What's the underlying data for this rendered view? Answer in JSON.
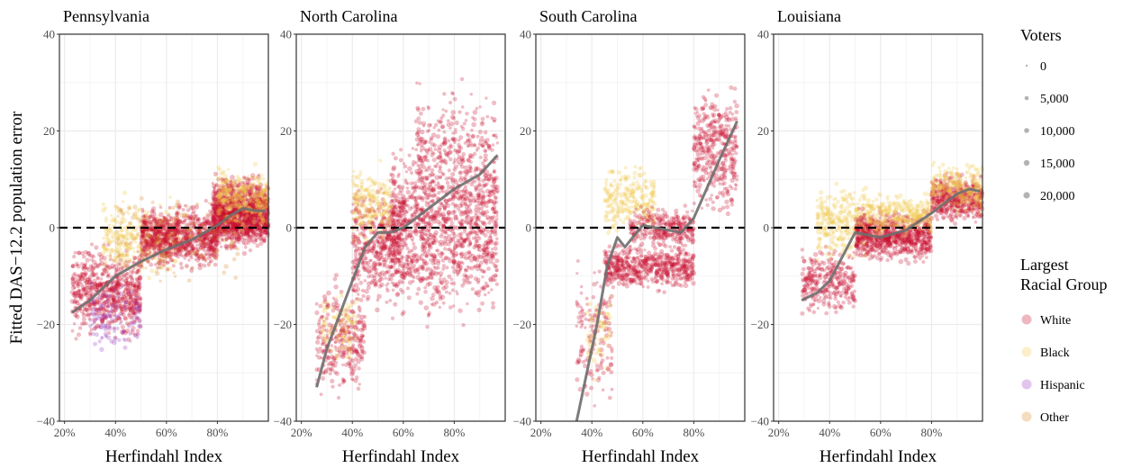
{
  "chart_data": {
    "type": "scatter",
    "ylabel": "Fitted DAS−12.2 population error",
    "xlabel": "Herfindahl Index",
    "x_ticks": [
      "20%",
      "40%",
      "60%",
      "80%"
    ],
    "x_range": [
      0.18,
      1.0
    ],
    "y_ticks": [
      "−40",
      "−20",
      "0",
      "20",
      "40"
    ],
    "y_range": [
      -40,
      40
    ],
    "reference_line_y": 0,
    "grid": true,
    "panels": [
      {
        "title": "Pennsylvania",
        "smooth_fit": {
          "x": [
            0.23,
            0.3,
            0.4,
            0.5,
            0.6,
            0.7,
            0.8,
            0.85,
            0.9,
            0.95,
            0.99
          ],
          "y": [
            -17.5,
            -15,
            -10,
            -7,
            -4.5,
            -2.5,
            0.5,
            2.5,
            4,
            3.5,
            3.5
          ]
        },
        "clusters": [
          {
            "x": [
              0.23,
              0.5
            ],
            "y": [
              -25,
              -2
            ],
            "n": 700,
            "group": "White"
          },
          {
            "x": [
              0.3,
              0.5
            ],
            "y": [
              -27,
              -10
            ],
            "n": 120,
            "group": "Hispanic"
          },
          {
            "x": [
              0.35,
              0.65
            ],
            "y": [
              -12,
              8
            ],
            "n": 350,
            "group": "Black"
          },
          {
            "x": [
              0.5,
              0.8
            ],
            "y": [
              -10,
              6
            ],
            "n": 900,
            "group": "White"
          },
          {
            "x": [
              0.78,
              1.0
            ],
            "y": [
              -6,
              12
            ],
            "n": 1500,
            "group": "White"
          },
          {
            "x": [
              0.8,
              1.0
            ],
            "y": [
              -2,
              14
            ],
            "n": 300,
            "group": "Black"
          },
          {
            "x": [
              0.4,
              0.9
            ],
            "y": [
              -15,
              10
            ],
            "n": 150,
            "group": "Other"
          }
        ]
      },
      {
        "title": "North Carolina",
        "smooth_fit": {
          "x": [
            0.26,
            0.3,
            0.35,
            0.4,
            0.45,
            0.5,
            0.55,
            0.6,
            0.7,
            0.8,
            0.9,
            0.97
          ],
          "y": [
            -33,
            -25,
            -18,
            -11,
            -4,
            -1,
            -1,
            0,
            4,
            8,
            11,
            15
          ]
        },
        "clusters": [
          {
            "x": [
              0.26,
              0.45
            ],
            "y": [
              -38,
              -8
            ],
            "n": 300,
            "group": "White"
          },
          {
            "x": [
              0.28,
              0.42
            ],
            "y": [
              -30,
              -10
            ],
            "n": 100,
            "group": "Black"
          },
          {
            "x": [
              0.4,
              0.6
            ],
            "y": [
              -20,
              12
            ],
            "n": 500,
            "group": "White"
          },
          {
            "x": [
              0.4,
              0.55
            ],
            "y": [
              -5,
              15
            ],
            "n": 200,
            "group": "Black"
          },
          {
            "x": [
              0.55,
              0.97
            ],
            "y": [
              -22,
              22
            ],
            "n": 1200,
            "group": "White"
          },
          {
            "x": [
              0.65,
              0.97
            ],
            "y": [
              0,
              32
            ],
            "n": 300,
            "group": "White"
          }
        ]
      },
      {
        "title": "South Carolina",
        "smooth_fit": {
          "x": [
            0.34,
            0.38,
            0.42,
            0.46,
            0.5,
            0.53,
            0.56,
            0.6,
            0.65,
            0.7,
            0.75,
            0.8,
            0.85,
            0.9,
            0.97
          ],
          "y": [
            -40,
            -30,
            -20,
            -8,
            -2,
            -4,
            -2,
            0.5,
            0,
            -0.5,
            -1,
            2,
            8,
            14,
            22
          ]
        },
        "clusters": [
          {
            "x": [
              0.34,
              0.48
            ],
            "y": [
              -40,
              -5
            ],
            "n": 150,
            "group": "White"
          },
          {
            "x": [
              0.38,
              0.48
            ],
            "y": [
              -32,
              -12
            ],
            "n": 60,
            "group": "Black"
          },
          {
            "x": [
              0.45,
              0.8
            ],
            "y": [
              -14,
              -2
            ],
            "n": 600,
            "group": "White"
          },
          {
            "x": [
              0.45,
              0.65
            ],
            "y": [
              -3,
              15
            ],
            "n": 250,
            "group": "Black"
          },
          {
            "x": [
              0.55,
              0.8
            ],
            "y": [
              -5,
              5
            ],
            "n": 300,
            "group": "White"
          },
          {
            "x": [
              0.8,
              0.97
            ],
            "y": [
              0,
              32
            ],
            "n": 400,
            "group": "White"
          }
        ]
      },
      {
        "title": "Louisiana",
        "smooth_fit": {
          "x": [
            0.29,
            0.35,
            0.4,
            0.45,
            0.5,
            0.55,
            0.6,
            0.7,
            0.8,
            0.85,
            0.9,
            0.95,
            0.99
          ],
          "y": [
            -15,
            -13.5,
            -11,
            -6,
            -1,
            -1.5,
            -2,
            -0.5,
            3,
            5,
            7,
            8,
            7.5
          ]
        },
        "clusters": [
          {
            "x": [
              0.29,
              0.5
            ],
            "y": [
              -20,
              -2
            ],
            "n": 300,
            "group": "White"
          },
          {
            "x": [
              0.35,
              0.55
            ],
            "y": [
              -8,
              10
            ],
            "n": 300,
            "group": "Black"
          },
          {
            "x": [
              0.5,
              0.8
            ],
            "y": [
              -8,
              5
            ],
            "n": 800,
            "group": "White"
          },
          {
            "x": [
              0.55,
              0.8
            ],
            "y": [
              -3,
              8
            ],
            "n": 300,
            "group": "Black"
          },
          {
            "x": [
              0.8,
              1.0
            ],
            "y": [
              0,
              12
            ],
            "n": 500,
            "group": "White"
          },
          {
            "x": [
              0.8,
              1.0
            ],
            "y": [
              2,
              15
            ],
            "n": 250,
            "group": "Black"
          }
        ]
      }
    ],
    "legend": {
      "size_title": "Voters",
      "size_entries": [
        "0",
        "5,000",
        "10,000",
        "15,000",
        "20,000"
      ],
      "group_title_lines": [
        "Largest",
        "Racial Group"
      ],
      "groups": [
        {
          "name": "White",
          "color": "#c8102e"
        },
        {
          "name": "Black",
          "color": "#f2c94c"
        },
        {
          "name": "Hispanic",
          "color": "#9b3fbf"
        },
        {
          "name": "Other",
          "color": "#d98c2b"
        }
      ],
      "placement": "right"
    },
    "colors": {
      "fit_line": "#6e6e6e",
      "reference_line": "#000000",
      "grid": "#ebebeb",
      "panel_border": "#333333"
    }
  }
}
